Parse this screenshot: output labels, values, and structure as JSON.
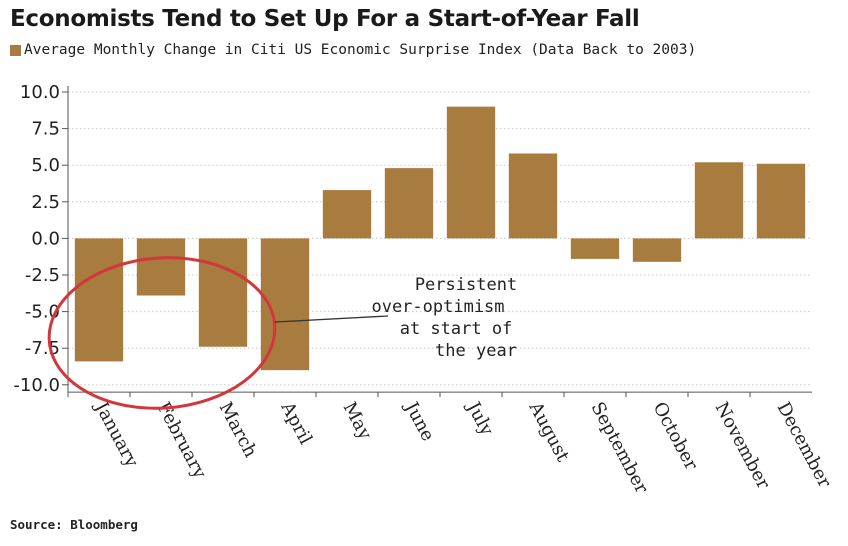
{
  "title": "Economists Tend to Set Up For a Start-of-Year Fall",
  "source": "Source: Bloomberg",
  "colors": {
    "bar": "#a87c3f",
    "gridline": "#c8c8c8",
    "circle": "#d3363c"
  },
  "chart_data": {
    "type": "bar",
    "legend_position": "top-left",
    "grid": true,
    "categories": [
      "January",
      "February",
      "March",
      "April",
      "May",
      "June",
      "July",
      "August",
      "September",
      "October",
      "November",
      "December"
    ],
    "series": [
      {
        "name": "Average Monthly Change in Citi US Economic Surprise Index (Data Back to 2003)",
        "values": [
          -8.4,
          -3.9,
          -7.4,
          -9.0,
          3.3,
          4.8,
          9.0,
          5.8,
          -1.4,
          -1.6,
          5.2,
          5.1
        ]
      }
    ],
    "y_ticks": [
      "10.0",
      "7.5",
      "5.0",
      "2.5",
      "0.0",
      "-2.5",
      "-5.0",
      "-7.5",
      "-10.0"
    ],
    "ylim": [
      -10.5,
      10.5
    ],
    "annotation": {
      "lines": [
        "Persistent",
        "over-optimism",
        "at start of",
        "the year"
      ],
      "points_to": "April"
    }
  }
}
